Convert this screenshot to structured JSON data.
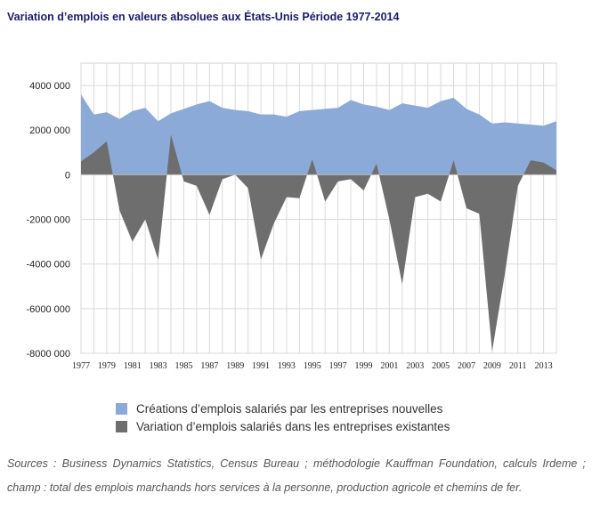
{
  "title": "Variation d’emplois en valeurs absolues aux États-Unis Période 1977-2014",
  "chart_data": {
    "type": "area",
    "x": [
      1977,
      1978,
      1979,
      1980,
      1981,
      1982,
      1983,
      1984,
      1985,
      1986,
      1987,
      1988,
      1989,
      1990,
      1991,
      1992,
      1993,
      1994,
      1995,
      1996,
      1997,
      1998,
      1999,
      2000,
      2001,
      2002,
      2003,
      2004,
      2005,
      2006,
      2007,
      2008,
      2009,
      2010,
      2011,
      2012,
      2013,
      2014
    ],
    "series": [
      {
        "name": "Créations d’emplois salariés par les entreprises nouvelles",
        "color": "#8caad8",
        "values": [
          3600000,
          2700000,
          2800000,
          2500000,
          2850000,
          3000000,
          2400000,
          2750000,
          2950000,
          3150000,
          3300000,
          3000000,
          2900000,
          2850000,
          2700000,
          2700000,
          2600000,
          2850000,
          2900000,
          2950000,
          3000000,
          3350000,
          3150000,
          3050000,
          2900000,
          3200000,
          3100000,
          3000000,
          3300000,
          3450000,
          2950000,
          2700000,
          2300000,
          2350000,
          2300000,
          2250000,
          2200000,
          2400000
        ]
      },
      {
        "name": "Variation d’emplois salariés dans les entreprises existantes",
        "color": "#6e6e6e",
        "values": [
          600000,
          1000000,
          1500000,
          -1600000,
          -3000000,
          -2000000,
          -3800000,
          1800000,
          -300000,
          -500000,
          -1800000,
          -200000,
          0,
          -600000,
          -3800000,
          -2200000,
          -1000000,
          -1050000,
          700000,
          -1200000,
          -300000,
          -200000,
          -700000,
          500000,
          -2000000,
          -4900000,
          -1000000,
          -850000,
          -1200000,
          650000,
          -1500000,
          -1750000,
          -7900000,
          -4400000,
          -500000,
          650000,
          550000,
          200000
        ]
      }
    ],
    "ylim": [
      -8000000,
      5000000
    ],
    "yticks": [
      4000000,
      2000000,
      0,
      -2000000,
      -4000000,
      -6000000,
      -8000000
    ],
    "ytick_labels": [
      "4000 000",
      "2000 000",
      "0",
      "-2000 000",
      "-4000 000",
      "-6000 000",
      "-8000 000"
    ],
    "xtick_labels": [
      "1977",
      "1979",
      "1981",
      "1983",
      "1985",
      "1987",
      "1989",
      "1991",
      "1993",
      "1995",
      "1997",
      "1999",
      "2001",
      "2003",
      "2005",
      "2007",
      "2009",
      "2011",
      "2013"
    ],
    "grid": true,
    "legend": "bottom"
  },
  "source": "Sources : Business Dynamics Statistics, Census Bureau ; méthodologie Kauffman Foundation, calculs Irdeme ; champ : total des emplois marchands hors services à la personne, production agricole et chemins de fer."
}
